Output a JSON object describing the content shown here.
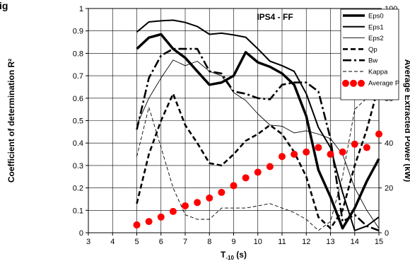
{
  "chart_data": {
    "type": "line",
    "title": "IPS4 - FF",
    "corner_title_fragment": "ig",
    "xlabel_main": "T",
    "xlabel_sub": "-10",
    "xlabel_unit": " (s)",
    "ylabel_left": "Coefficient of determination R²",
    "ylabel_right": "Average Extracted Power (kW)",
    "xlim": [
      3,
      15
    ],
    "ylim_left": [
      0,
      1
    ],
    "ylim_right": [
      0,
      100
    ],
    "x_ticks": [
      "3",
      "4",
      "5",
      "6",
      "7",
      "8",
      "9",
      "10",
      "11",
      "12",
      "13",
      "14",
      "15"
    ],
    "y_left_ticks": [
      "0",
      "0.1",
      "0.2",
      "0.3",
      "0.4",
      "0.5",
      "0.6",
      "0.7",
      "0.8",
      "0.9",
      "1"
    ],
    "y_right_ticks": [
      "0",
      "20",
      "40",
      "60",
      "80",
      "100"
    ],
    "legend_position": "top-right",
    "series": [
      {
        "name": "Eps0",
        "style": "thick-solid",
        "x": [
          5,
          5.5,
          6,
          6.5,
          7,
          7.5,
          8,
          8.5,
          9,
          9.5,
          10,
          10.5,
          11,
          11.5,
          12,
          12.5,
          13,
          13.5,
          14,
          14.5,
          15
        ],
        "y": [
          0.82,
          0.87,
          0.885,
          0.82,
          0.78,
          0.72,
          0.66,
          0.67,
          0.7,
          0.805,
          0.76,
          0.74,
          0.71,
          0.66,
          0.52,
          0.28,
          0.16,
          0.02,
          0.11,
          0.23,
          0.33
        ]
      },
      {
        "name": "Eps1",
        "style": "solid",
        "x": [
          5,
          5.5,
          6,
          6.5,
          7,
          7.5,
          8,
          8.5,
          9,
          9.5,
          10,
          10.5,
          11,
          11.5,
          12,
          12.5,
          13,
          13.5,
          14,
          14.5,
          15
        ],
        "y": [
          0.895,
          0.94,
          0.945,
          0.948,
          0.938,
          0.92,
          0.885,
          0.89,
          0.882,
          0.872,
          0.82,
          0.765,
          0.745,
          0.72,
          0.62,
          0.47,
          0.38,
          0.18,
          0.01,
          0.03,
          0.07
        ]
      },
      {
        "name": "Eps2",
        "style": "thin-solid",
        "x": [
          5,
          5.5,
          6,
          6.5,
          7,
          7.5,
          8,
          8.5,
          9,
          9.5,
          10,
          10.5,
          11,
          11.5,
          12,
          12.5,
          13,
          13.5,
          14,
          14.5,
          15
        ],
        "y": [
          0.48,
          0.6,
          0.69,
          0.77,
          0.745,
          0.765,
          0.72,
          0.7,
          0.625,
          0.59,
          0.53,
          0.48,
          0.475,
          0.445,
          0.455,
          0.44,
          0.42,
          0.35,
          0.2,
          0.1,
          0.02
        ]
      },
      {
        "name": "Qp",
        "style": "dashed",
        "x": [
          5,
          5.5,
          6,
          6.5,
          7,
          7.5,
          8,
          8.5,
          9,
          9.5,
          10,
          10.5,
          11,
          11.5,
          12,
          12.5,
          13,
          13.5,
          14,
          14.5,
          15
        ],
        "y": [
          0.13,
          0.35,
          0.5,
          0.62,
          0.48,
          0.4,
          0.31,
          0.3,
          0.35,
          0.41,
          0.44,
          0.48,
          0.44,
          0.36,
          0.25,
          0.07,
          0.02,
          0.1,
          0.3,
          0.46,
          0.66
        ]
      },
      {
        "name": "Bw",
        "style": "dash-dot",
        "x": [
          5,
          5.5,
          6,
          6.5,
          7,
          7.5,
          8,
          8.5,
          9,
          9.5,
          10,
          10.5,
          11,
          11.5,
          12,
          12.5,
          13,
          13.5,
          14,
          14.5,
          15
        ],
        "y": [
          0.46,
          0.69,
          0.79,
          0.82,
          0.82,
          0.82,
          0.72,
          0.71,
          0.63,
          0.62,
          0.6,
          0.595,
          0.66,
          0.67,
          0.67,
          0.63,
          0.42,
          0.05,
          0.08,
          0.03,
          0.01
        ]
      },
      {
        "name": "Kappa",
        "style": "thin-dashed",
        "x": [
          5,
          5.5,
          6,
          6.5,
          7,
          7.5,
          8,
          8.5,
          9,
          9.5,
          10,
          10.5,
          11,
          11.5,
          12,
          12.5,
          13,
          13.5,
          14,
          14.5,
          15
        ],
        "y": [
          0.34,
          0.56,
          0.38,
          0.2,
          0.08,
          0.06,
          0.06,
          0.11,
          0.11,
          0.11,
          0.12,
          0.13,
          0.11,
          0.09,
          0.06,
          0.01,
          0.05,
          0.25,
          0.55,
          0.6,
          0.69
        ]
      },
      {
        "name": "Average P",
        "style": "red-dots",
        "axis": "right",
        "x": [
          5,
          5.5,
          6,
          6.5,
          7,
          7.5,
          8,
          8.5,
          9,
          9.5,
          10,
          10.5,
          11,
          11.5,
          12,
          12.5,
          13,
          13.5,
          14,
          14.5,
          15
        ],
        "y": [
          3.5,
          5,
          7,
          9.5,
          12,
          13.5,
          15.5,
          18,
          21,
          24.5,
          27,
          29.5,
          34,
          35,
          36,
          38,
          35,
          36,
          39.5,
          38,
          44
        ]
      }
    ]
  },
  "colors": {
    "lines": "#000000",
    "dots": "#ff0000",
    "background": "#ffffff"
  }
}
